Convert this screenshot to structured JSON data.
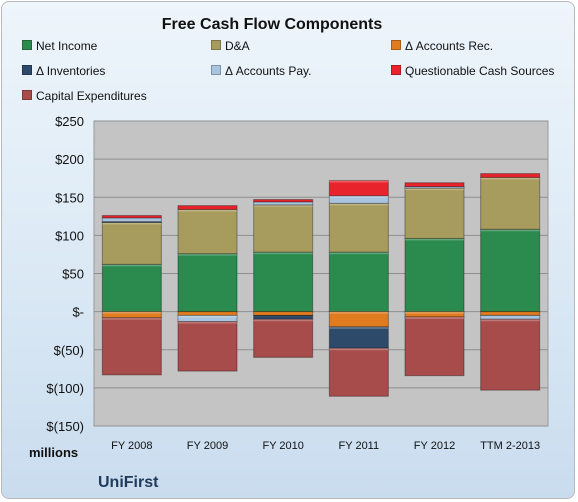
{
  "chart_data": {
    "type": "bar",
    "stacked": true,
    "title": "Free Cash Flow Components",
    "unit_label": "millions",
    "company": "UniFirst",
    "categories": [
      "FY 2008",
      "FY 2009",
      "FY 2010",
      "FY 2011",
      "FY 2012",
      "TTM 2-2013"
    ],
    "ylim": [
      -150,
      250
    ],
    "y_ticks": [
      250,
      200,
      150,
      100,
      50,
      0,
      -50,
      -100,
      -150
    ],
    "y_tick_labels": [
      "$250",
      "$200",
      "$150",
      "$100",
      "$50",
      "$-",
      "$(50)",
      "$(100)",
      "$(150)"
    ],
    "grid": true,
    "legend_position": "top",
    "series": [
      {
        "name": "Net Income",
        "color": "#2b8a4e",
        "values": [
          62,
          76,
          78,
          78,
          96,
          108
        ]
      },
      {
        "name": "D&A",
        "color": "#a89b5e",
        "values": [
          55,
          58,
          62,
          64,
          66,
          68
        ]
      },
      {
        "name": "Δ Accounts Rec.",
        "color": "#e07b20",
        "values": [
          -8,
          -5,
          -5,
          -20,
          -7,
          -5
        ]
      },
      {
        "name": "Δ Inventories",
        "color": "#2e4a6b",
        "values": [
          1,
          0,
          -5,
          -28,
          0,
          0
        ]
      },
      {
        "name": "Δ Accounts Pay.",
        "color": "#a9c4de",
        "values": [
          5,
          -8,
          4,
          10,
          2,
          -5
        ]
      },
      {
        "name": "Questionable Cash Sources",
        "color": "#e8232b",
        "values": [
          3,
          5,
          3,
          20,
          5,
          5
        ]
      },
      {
        "name": "Capital Expenditures",
        "color": "#a84b4b",
        "values": [
          -75,
          -65,
          -50,
          -63,
          -77,
          -93
        ]
      }
    ]
  }
}
